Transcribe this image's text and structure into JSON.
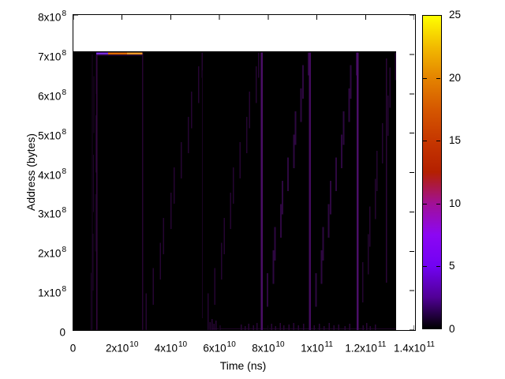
{
  "chart_data": {
    "type": "heatmap",
    "title": "",
    "xlabel": "Time (ns)",
    "ylabel": "Address (bytes)",
    "x_range": [
      0,
      140000000000.0
    ],
    "y_range": [
      0,
      800000000.0
    ],
    "grid": false,
    "x_ticks": [
      {
        "mant": "0",
        "exp": "",
        "value": 0
      },
      {
        "mant": "2x10",
        "exp": "10",
        "value": 20000000000.0
      },
      {
        "mant": "4x10",
        "exp": "10",
        "value": 40000000000.0
      },
      {
        "mant": "6x10",
        "exp": "10",
        "value": 60000000000.0
      },
      {
        "mant": "8x10",
        "exp": "10",
        "value": 80000000000.0
      },
      {
        "mant": "1x10",
        "exp": "11",
        "value": 100000000000.0
      },
      {
        "mant": "1.2x10",
        "exp": "11",
        "value": 120000000000.0
      },
      {
        "mant": "1.4x10",
        "exp": "11",
        "value": 140000000000.0
      }
    ],
    "y_ticks": [
      {
        "mant": "8x10",
        "exp": "8",
        "value": 800000000.0
      },
      {
        "mant": "7x10",
        "exp": "8",
        "value": 700000000.0
      },
      {
        "mant": "6x10",
        "exp": "8",
        "value": 600000000.0
      },
      {
        "mant": "5x10",
        "exp": "8",
        "value": 500000000.0
      },
      {
        "mant": "4x10",
        "exp": "8",
        "value": 400000000.0
      },
      {
        "mant": "3x10",
        "exp": "8",
        "value": 300000000.0
      },
      {
        "mant": "2x10",
        "exp": "8",
        "value": 200000000.0
      },
      {
        "mant": "1x10",
        "exp": "8",
        "value": 100000000.0
      },
      {
        "mant": "0",
        "exp": "",
        "value": 0
      }
    ],
    "colorbar": {
      "min": 0,
      "max": 25,
      "tick_labels": [
        {
          "label": "25",
          "value": 25
        },
        {
          "label": "20",
          "value": 20
        },
        {
          "label": "15",
          "value": 15
        },
        {
          "label": "10",
          "value": 10
        },
        {
          "label": "5",
          "value": 5
        },
        {
          "label": "0",
          "value": 0
        }
      ],
      "palette_name": "gnuplot-pm3d-black-purple-red-yellow",
      "gradient_stops": [
        {
          "pos": 0,
          "color": "#000000"
        },
        {
          "pos": 10,
          "color": "#510096"
        },
        {
          "pos": 20,
          "color": "#7202f3"
        },
        {
          "pos": 30,
          "color": "#8c07f3"
        },
        {
          "pos": 40,
          "color": "#a11096"
        },
        {
          "pos": 50,
          "color": "#b42000"
        },
        {
          "pos": 60,
          "color": "#c63700"
        },
        {
          "pos": 70,
          "color": "#d55700"
        },
        {
          "pos": 80,
          "color": "#e48300"
        },
        {
          "pos": 90,
          "color": "#f2ba00"
        },
        {
          "pos": 100,
          "color": "#ffff00"
        }
      ]
    },
    "features": {
      "data_block": {
        "t0": 0,
        "t1": 132500000000.0,
        "a0": 0,
        "a1": 708000000.0,
        "color": "#000000"
      },
      "top_streak": {
        "a": 702000000.0,
        "segments": [
          {
            "t0": 9400000000.0,
            "t1": 14300000000.0,
            "color": "#7b2be0"
          },
          {
            "t0": 14300000000.0,
            "t1": 22000000000.0,
            "color": "#e06a00"
          },
          {
            "t0": 22000000000.0,
            "t1": 28400000000.0,
            "color": "#f09a28"
          }
        ],
        "underline": {
          "t0": 9700000000.0,
          "t1": 28400000000.0,
          "color": "#3c0a50"
        }
      },
      "vertical_lines": [
        {
          "t": 7800000000.0,
          "a0": 0,
          "a1": 700000000.0,
          "w": 1,
          "color": "#1c0426"
        },
        {
          "t": 9600000000.0,
          "a0": 0,
          "a1": 705000000.0,
          "w": 1.5,
          "color": "#33073f"
        },
        {
          "t": 28500000000.0,
          "a0": 0,
          "a1": 705000000.0,
          "w": 1.5,
          "color": "#260531"
        },
        {
          "t": 53000000000.0,
          "a0": 30000000.0,
          "a1": 660000000.0,
          "w": 1,
          "color": "#1a0323"
        },
        {
          "t": 77450000000.0,
          "a0": 0,
          "a1": 705000000.0,
          "w": 2.5,
          "color": "#4a0e66"
        },
        {
          "t": 97200000000.0,
          "a0": 0,
          "a1": 705000000.0,
          "w": 2.5,
          "color": "#440b5e"
        },
        {
          "t": 116700000000.0,
          "a0": 0,
          "a1": 705000000.0,
          "w": 2.5,
          "color": "#4a0e66"
        },
        {
          "t": 128600000000.0,
          "a0": 120000000.0,
          "a1": 690000000.0,
          "w": 1.5,
          "color": "#2a0638"
        }
      ],
      "sweeps": [
        {
          "t0": 7900000000.0,
          "t1": 9400000000.0,
          "a0": 0,
          "a1": 700000000.0,
          "n": 7,
          "w": 1,
          "color": "#1e0428"
        },
        {
          "t0": 30500000000.0,
          "t1": 53500000000.0,
          "a0": 0,
          "a1": 705000000.0,
          "n": 11,
          "w": 1.5,
          "color": "#250532"
        },
        {
          "t0": 56000000000.0,
          "t1": 76800000000.0,
          "a0": 0,
          "a1": 705000000.0,
          "n": 11,
          "w": 1.5,
          "color": "#250532"
        },
        {
          "t0": 78100000000.0,
          "t1": 96600000000.0,
          "a0": 0,
          "a1": 705000000.0,
          "n": 12,
          "w": 2,
          "color": "#2d0740"
        },
        {
          "t0": 97900000000.0,
          "t1": 116300000000.0,
          "a0": 0,
          "a1": 705000000.0,
          "n": 12,
          "w": 2,
          "color": "#2d0740"
        },
        {
          "t0": 117300000000.0,
          "t1": 131900000000.0,
          "a0": 0,
          "a1": 705000000.0,
          "n": 10,
          "w": 1.5,
          "color": "#250532"
        }
      ],
      "baseline": {
        "t0": 56500000000.0,
        "t1": 132500000000.0,
        "a": 4000000.0,
        "color": "#200529"
      },
      "bottom_ticks": [
        [
          56200000000.0,
          10
        ],
        [
          57000000000.0,
          14
        ],
        [
          57800000000.0,
          8
        ],
        [
          58600000000.0,
          12
        ],
        [
          60200000000.0,
          6
        ],
        [
          69000000000.0,
          7
        ],
        [
          70500000000.0,
          5
        ],
        [
          72000000000.0,
          8
        ],
        [
          74000000000.0,
          6
        ],
        [
          75500000000.0,
          9
        ],
        [
          80000000000.0,
          6
        ],
        [
          81500000000.0,
          8
        ],
        [
          83000000000.0,
          5
        ],
        [
          85000000000.0,
          9
        ],
        [
          86500000000.0,
          6
        ],
        [
          88500000000.0,
          7
        ],
        [
          90500000000.0,
          9
        ],
        [
          92500000000.0,
          6
        ],
        [
          94500000000.0,
          8
        ],
        [
          99000000000.0,
          6
        ],
        [
          101000000000.0,
          8
        ],
        [
          103000000000.0,
          5
        ],
        [
          105000000000.0,
          9
        ],
        [
          107000000000.0,
          6
        ],
        [
          109000000000.0,
          7
        ],
        [
          111500000000.0,
          5
        ],
        [
          113500000000.0,
          8
        ],
        [
          119000000000.0,
          6
        ],
        [
          120500000000.0,
          9
        ],
        [
          122000000000.0,
          5
        ],
        [
          124000000000.0,
          7
        ]
      ],
      "bottom_tick_color": "#2a0638",
      "tick_color": "#000000"
    }
  }
}
